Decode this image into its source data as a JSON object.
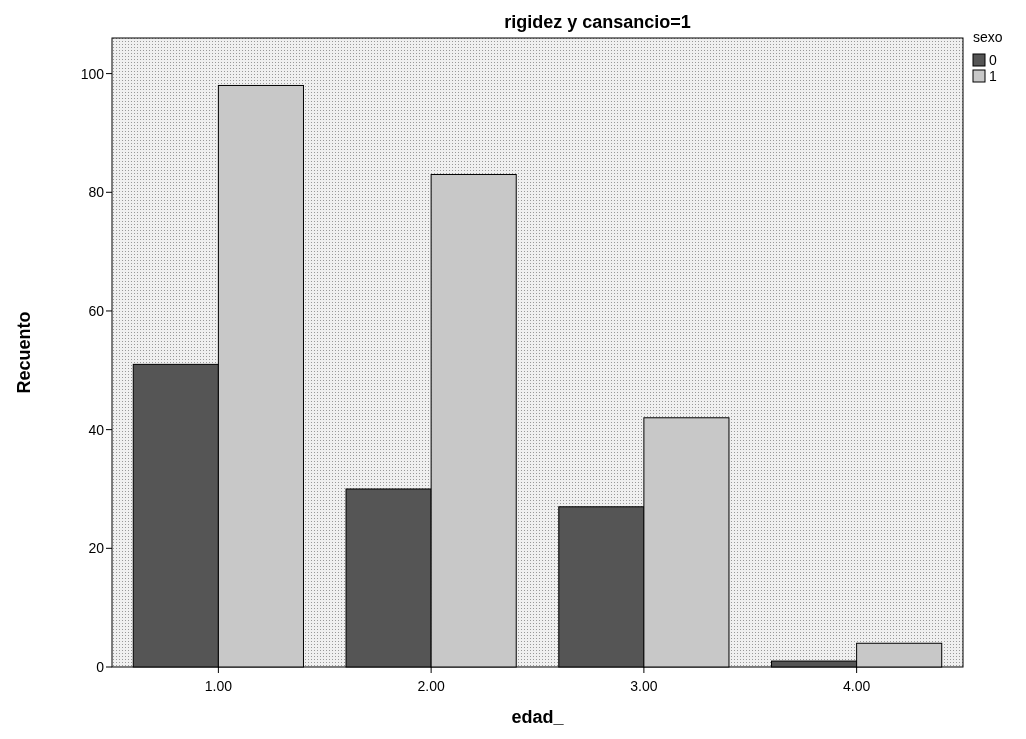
{
  "chart_data": {
    "type": "bar",
    "title": "rigidez y cansancio=1",
    "xlabel": "edad_",
    "ylabel": "Recuento",
    "legend_title": "sexo",
    "legend": "top right",
    "categories": [
      "1.00",
      "2.00",
      "3.00",
      "4.00"
    ],
    "series": [
      {
        "name": "0",
        "color": "#555555",
        "values": [
          51,
          30,
          27,
          1
        ]
      },
      {
        "name": "1",
        "color": "#c8c8c8",
        "values": [
          98,
          83,
          42,
          4
        ]
      }
    ],
    "ylim": [
      0,
      106
    ],
    "yticks": [
      0,
      20,
      40,
      60,
      80,
      100
    ],
    "grid": false
  }
}
